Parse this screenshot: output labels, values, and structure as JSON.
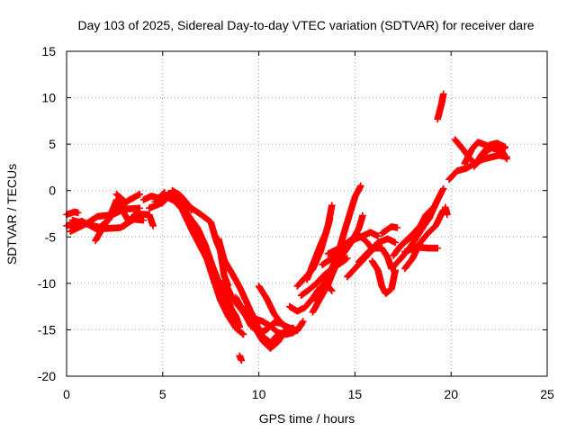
{
  "chart_data": {
    "type": "scatter",
    "title": "Day 103 of 2025, Sidereal Day-to-day VTEC variation (SDTVAR) for receiver dare",
    "xlabel": "GPS time / hours",
    "ylabel": "SDTVAR / TECUs",
    "xlim": [
      0,
      25
    ],
    "ylim": [
      -20,
      15
    ],
    "xticks": [
      "0",
      "5",
      "10",
      "15",
      "20",
      "25"
    ],
    "yticks": [
      "-20",
      "-15",
      "-10",
      "-5",
      "0",
      "5",
      "10",
      "15"
    ],
    "grid": true,
    "marker": "plus",
    "color": "#ff0000",
    "tracks": [
      [
        [
          0.0,
          -2.6
        ],
        [
          0.4,
          -2.3
        ],
        [
          0.6,
          -2.4
        ]
      ],
      [
        [
          0.0,
          -3.8
        ],
        [
          0.8,
          -3.3
        ],
        [
          1.6,
          -4.2
        ],
        [
          2.2,
          -3.1
        ],
        [
          2.6,
          -1.0
        ],
        [
          3.2,
          -3.2
        ]
      ],
      [
        [
          0.2,
          -4.4
        ],
        [
          1.0,
          -3.6
        ],
        [
          1.6,
          -2.8
        ],
        [
          2.4,
          -2.6
        ],
        [
          3.0,
          -2.0
        ],
        [
          3.8,
          -1.9
        ]
      ],
      [
        [
          1.5,
          -5.4
        ],
        [
          2.0,
          -3.6
        ],
        [
          2.6,
          -2.0
        ],
        [
          3.2,
          -1.1
        ],
        [
          3.8,
          -0.4
        ]
      ],
      [
        [
          0.3,
          -3.2
        ],
        [
          1.2,
          -3.7
        ],
        [
          2.0,
          -4.1
        ],
        [
          2.8,
          -4.0
        ],
        [
          3.5,
          -3.1
        ],
        [
          4.0,
          -3.2
        ]
      ],
      [
        [
          3.0,
          -3.8
        ],
        [
          3.6,
          -2.5
        ],
        [
          4.3,
          -2.6
        ],
        [
          4.5,
          -3.8
        ]
      ],
      [
        [
          2.6,
          -0.4
        ],
        [
          3.1,
          -1.3
        ]
      ],
      [
        [
          4.3,
          -1.9
        ],
        [
          5.0,
          -1.3
        ],
        [
          5.5,
          -0.2
        ],
        [
          6.0,
          -0.9
        ],
        [
          6.5,
          -1.9
        ],
        [
          7.0,
          -2.6
        ],
        [
          7.5,
          -3.4
        ],
        [
          7.8,
          -5.5
        ],
        [
          8.0,
          -6.5
        ],
        [
          8.2,
          -9.2
        ],
        [
          8.4,
          -10.2
        ]
      ],
      [
        [
          4.6,
          -1.2
        ],
        [
          5.2,
          -0.7
        ],
        [
          5.6,
          -1.1
        ],
        [
          6.0,
          -2.0
        ],
        [
          6.5,
          -4.2
        ],
        [
          7.0,
          -6.2
        ],
        [
          7.6,
          -8.5
        ],
        [
          8.0,
          -10.8
        ],
        [
          8.4,
          -12.2
        ],
        [
          8.8,
          -13.5
        ],
        [
          9.0,
          -14.7
        ]
      ],
      [
        [
          5.6,
          -0.5
        ],
        [
          6.0,
          -1.4
        ],
        [
          6.4,
          -3.0
        ],
        [
          6.8,
          -4.9
        ],
        [
          7.2,
          -6.7
        ],
        [
          7.6,
          -9.3
        ],
        [
          8.0,
          -11.8
        ],
        [
          8.4,
          -13.5
        ],
        [
          8.8,
          -14.8
        ],
        [
          9.2,
          -15.5
        ]
      ],
      [
        [
          5.3,
          -0.3
        ],
        [
          5.8,
          -1.3
        ],
        [
          6.3,
          -2.6
        ],
        [
          6.8,
          -4.0
        ],
        [
          7.2,
          -5.8
        ],
        [
          7.6,
          -8.2
        ],
        [
          8.0,
          -10.3
        ],
        [
          8.5,
          -12.3
        ],
        [
          8.9,
          -15.0
        ]
      ],
      [
        [
          7.9,
          -5.2
        ],
        [
          8.2,
          -7.5
        ],
        [
          8.6,
          -8.9
        ],
        [
          9.0,
          -10.4
        ],
        [
          9.4,
          -12.2
        ],
        [
          9.8,
          -14.1
        ],
        [
          10.2,
          -15.7
        ],
        [
          10.6,
          -16.4
        ],
        [
          11.0,
          -15.5
        ]
      ],
      [
        [
          8.2,
          -9.7
        ],
        [
          8.6,
          -11.5
        ],
        [
          9.0,
          -12.6
        ],
        [
          9.4,
          -13.7
        ],
        [
          9.8,
          -14.8
        ],
        [
          10.2,
          -16.2
        ],
        [
          10.6,
          -17.0
        ],
        [
          11.0,
          -16.3
        ],
        [
          11.4,
          -15.0
        ],
        [
          11.8,
          -14.8
        ]
      ],
      [
        [
          8.8,
          -11.5
        ],
        [
          9.2,
          -13.0
        ],
        [
          9.6,
          -14.6
        ],
        [
          10.0,
          -15.3
        ],
        [
          10.4,
          -15.0
        ],
        [
          10.8,
          -14.2
        ],
        [
          11.2,
          -14.3
        ],
        [
          11.6,
          -15.1
        ]
      ],
      [
        [
          9.4,
          -12.5
        ],
        [
          9.8,
          -13.8
        ],
        [
          10.2,
          -14.1
        ],
        [
          10.6,
          -14.6
        ],
        [
          11.0,
          -15.3
        ],
        [
          11.4,
          -15.5
        ],
        [
          11.8,
          -15.3
        ],
        [
          12.2,
          -14.5
        ]
      ],
      [
        [
          10.0,
          -10.3
        ],
        [
          10.4,
          -11.6
        ],
        [
          10.8,
          -13.3
        ],
        [
          11.2,
          -14.4
        ],
        [
          11.6,
          -14.8
        ],
        [
          12.0,
          -15.1
        ],
        [
          12.3,
          -14.1
        ]
      ],
      [
        [
          9.0,
          -17.8
        ],
        [
          9.1,
          -18.3
        ]
      ],
      [
        [
          11.6,
          -12.5
        ],
        [
          12.0,
          -13.0
        ],
        [
          12.4,
          -12.6
        ],
        [
          12.8,
          -11.6
        ],
        [
          13.2,
          -10.4
        ],
        [
          13.6,
          -10.3
        ],
        [
          13.8,
          -10.8
        ]
      ],
      [
        [
          12.0,
          -10.3
        ],
        [
          12.4,
          -9.4
        ],
        [
          12.8,
          -8.5
        ],
        [
          13.2,
          -6.6
        ],
        [
          13.6,
          -3.8
        ],
        [
          13.8,
          -1.6
        ]
      ],
      [
        [
          12.2,
          -11.3
        ],
        [
          12.6,
          -10.7
        ],
        [
          13.0,
          -10.0
        ],
        [
          13.4,
          -9.1
        ],
        [
          13.8,
          -8.4
        ],
        [
          14.2,
          -7.9
        ],
        [
          14.6,
          -7.3
        ]
      ],
      [
        [
          12.8,
          -13.1
        ],
        [
          13.2,
          -11.6
        ],
        [
          13.6,
          -10.1
        ],
        [
          14.0,
          -8.1
        ],
        [
          14.4,
          -6.8
        ],
        [
          14.8,
          -5.6
        ],
        [
          15.2,
          -4.1
        ],
        [
          15.4,
          -2.7
        ]
      ],
      [
        [
          13.0,
          -11.9
        ],
        [
          13.4,
          -10.0
        ],
        [
          13.8,
          -8.4
        ],
        [
          14.2,
          -6.2
        ],
        [
          14.6,
          -3.4
        ],
        [
          15.0,
          -0.7
        ],
        [
          15.3,
          0.5
        ]
      ],
      [
        [
          12.5,
          -9.6
        ],
        [
          12.9,
          -7.5
        ],
        [
          13.2,
          -5.9
        ],
        [
          13.5,
          -4.5
        ],
        [
          13.7,
          -3.0
        ]
      ],
      [
        [
          13.3,
          -8.0
        ],
        [
          13.8,
          -7.3
        ],
        [
          14.3,
          -6.4
        ],
        [
          14.8,
          -5.4
        ],
        [
          15.3,
          -5.0
        ],
        [
          15.8,
          -4.5
        ],
        [
          16.2,
          -4.9
        ]
      ],
      [
        [
          13.6,
          -6.8
        ],
        [
          14.2,
          -6.2
        ],
        [
          14.8,
          -5.3
        ],
        [
          15.2,
          -4.8
        ],
        [
          15.6,
          -5.5
        ],
        [
          15.9,
          -6.3
        ]
      ],
      [
        [
          14.6,
          -9.3
        ],
        [
          15.0,
          -8.4
        ],
        [
          15.5,
          -7.3
        ],
        [
          16.0,
          -6.2
        ],
        [
          16.4,
          -6.2
        ],
        [
          16.7,
          -7.2
        ],
        [
          16.9,
          -8.4
        ]
      ],
      [
        [
          15.2,
          -7.7
        ],
        [
          15.7,
          -6.6
        ],
        [
          16.2,
          -5.6
        ],
        [
          16.7,
          -5.2
        ],
        [
          17.1,
          -5.6
        ]
      ],
      [
        [
          15.9,
          -7.6
        ],
        [
          16.2,
          -8.6
        ],
        [
          16.4,
          -10.3
        ],
        [
          16.6,
          -11.1
        ],
        [
          16.9,
          -10.6
        ],
        [
          17.1,
          -8.6
        ]
      ],
      [
        [
          16.4,
          -4.6
        ],
        [
          16.9,
          -3.9
        ],
        [
          17.2,
          -4.0
        ]
      ],
      [
        [
          16.9,
          -8.4
        ],
        [
          17.4,
          -7.3
        ],
        [
          17.9,
          -6.0
        ],
        [
          18.4,
          -4.4
        ],
        [
          18.9,
          -2.8
        ],
        [
          19.3,
          -1.0
        ],
        [
          19.6,
          0.2
        ]
      ],
      [
        [
          17.2,
          -6.4
        ],
        [
          17.6,
          -5.5
        ],
        [
          18.0,
          -4.7
        ],
        [
          18.4,
          -3.8
        ],
        [
          18.7,
          -2.6
        ],
        [
          19.1,
          -1.8
        ]
      ],
      [
        [
          17.0,
          -7.0
        ],
        [
          17.4,
          -5.9
        ],
        [
          17.8,
          -5.2
        ],
        [
          18.2,
          -4.5
        ],
        [
          18.6,
          -3.7
        ],
        [
          18.9,
          -2.9
        ]
      ],
      [
        [
          17.6,
          -8.4
        ],
        [
          18.0,
          -7.3
        ],
        [
          18.4,
          -5.6
        ],
        [
          18.8,
          -4.6
        ],
        [
          19.2,
          -3.8
        ],
        [
          19.6,
          -2.1
        ]
      ],
      [
        [
          17.6,
          -6.6
        ],
        [
          18.2,
          -6.1
        ],
        [
          18.8,
          -6.2
        ],
        [
          19.3,
          -6.2
        ]
      ],
      [
        [
          19.3,
          7.7
        ],
        [
          19.4,
          8.5
        ],
        [
          19.5,
          9.3
        ],
        [
          19.6,
          10.4
        ]
      ],
      [
        [
          19.7,
          -1.8
        ],
        [
          19.8,
          -2.6
        ]
      ],
      [
        [
          19.9,
          1.2
        ],
        [
          20.3,
          2.1
        ],
        [
          20.8,
          2.4
        ],
        [
          21.3,
          3.0
        ],
        [
          21.7,
          3.4
        ],
        [
          22.1,
          3.6
        ],
        [
          22.5,
          3.8
        ],
        [
          22.9,
          3.6
        ]
      ],
      [
        [
          20.2,
          5.5
        ],
        [
          20.6,
          4.5
        ],
        [
          21.0,
          3.4
        ],
        [
          21.3,
          2.8
        ],
        [
          21.7,
          4.0
        ],
        [
          22.1,
          4.6
        ],
        [
          22.5,
          4.3
        ],
        [
          22.8,
          4.6
        ]
      ],
      [
        [
          20.7,
          2.9
        ],
        [
          21.1,
          4.5
        ],
        [
          21.4,
          5.2
        ],
        [
          21.8,
          4.9
        ],
        [
          22.2,
          4.6
        ],
        [
          22.6,
          4.4
        ],
        [
          22.9,
          3.4
        ]
      ],
      [
        [
          21.2,
          2.6
        ],
        [
          21.6,
          3.9
        ],
        [
          22.0,
          4.9
        ],
        [
          22.4,
          5.1
        ],
        [
          22.8,
          4.7
        ]
      ],
      [
        [
          5.5,
          0.0
        ],
        [
          5.9,
          -0.5
        ],
        [
          6.2,
          -1.2
        ],
        [
          6.5,
          -2.1
        ]
      ],
      [
        [
          4.0,
          -1.0
        ],
        [
          4.4,
          -0.6
        ],
        [
          4.8,
          -0.8
        ],
        [
          5.1,
          -0.2
        ]
      ]
    ]
  }
}
